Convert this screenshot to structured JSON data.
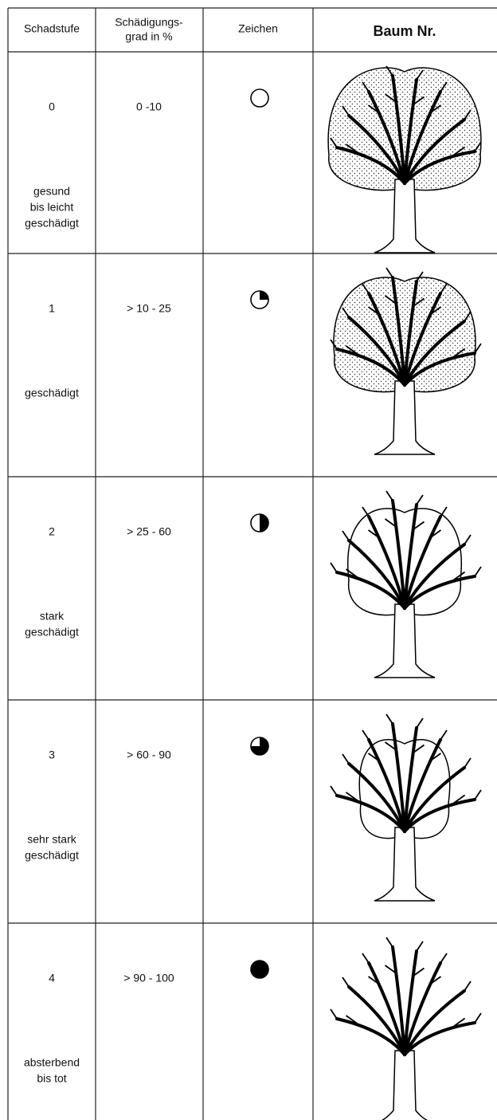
{
  "table": {
    "header": [
      "Schadstufe",
      [
        "Schädigungs-",
        "grad in %"
      ],
      "Zeichen",
      "Baum Nr."
    ],
    "rows": [
      {
        "level": "0",
        "range": "0 -10",
        "description": [
          "gesund",
          "bis leicht",
          "geschädigt"
        ]
      },
      {
        "level": "1",
        "range": "> 10 - 25",
        "description": [
          "geschädigt"
        ]
      },
      {
        "level": "2",
        "range": "> 25 - 60",
        "description": [
          "stark",
          "geschädigt"
        ]
      },
      {
        "level": "3",
        "range": "> 60 - 90",
        "description": [
          "sehr stark",
          "geschädigt"
        ]
      },
      {
        "level": "4",
        "range": "> 90 - 100",
        "description": [
          "absterbend",
          "bis tot"
        ]
      }
    ]
  }
}
